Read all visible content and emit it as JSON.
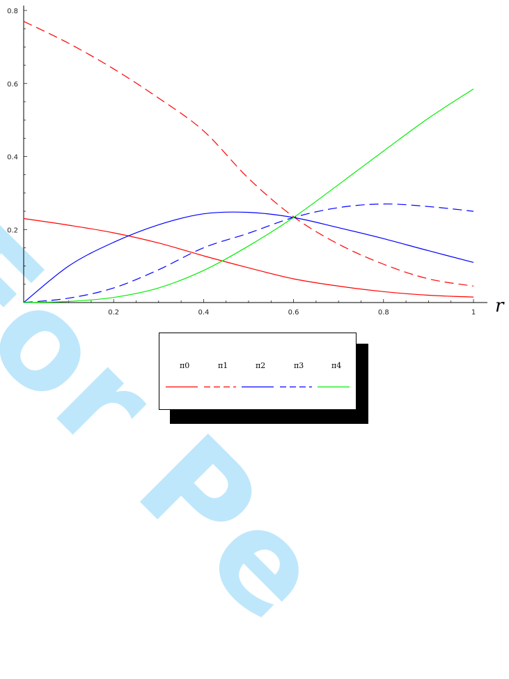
{
  "watermark": "For Pe",
  "chart_data": {
    "type": "line",
    "title": "",
    "xlabel": "r",
    "ylabel": "",
    "xlim": [
      0,
      1
    ],
    "ylim": [
      0,
      0.8
    ],
    "x_ticks": [
      0.2,
      0.4,
      0.6,
      0.8,
      1
    ],
    "x_tick_labels": [
      "0.2",
      "0.4",
      "0.6",
      "0.8",
      "1"
    ],
    "y_ticks": [
      0.2,
      0.4,
      0.6,
      0.8
    ],
    "y_tick_labels": [
      "0.2",
      "0.4",
      "0.6",
      "0.8"
    ],
    "grid": false,
    "legend_position": "bottom-center",
    "x": [
      0,
      0.1,
      0.2,
      0.3,
      0.4,
      0.5,
      0.6,
      0.7,
      0.8,
      0.9,
      1.0
    ],
    "series": [
      {
        "name": "π0",
        "color": "#ff0000",
        "dash": "solid",
        "values": [
          0.23,
          0.212,
          0.191,
          0.163,
          0.128,
          0.095,
          0.065,
          0.045,
          0.03,
          0.02,
          0.015
        ]
      },
      {
        "name": "π1",
        "color": "#ff0000",
        "dash": "dashed",
        "values": [
          0.77,
          0.71,
          0.64,
          0.56,
          0.47,
          0.34,
          0.235,
          0.16,
          0.105,
          0.065,
          0.045
        ]
      },
      {
        "name": "π2",
        "color": "#0000ff",
        "dash": "solid",
        "values": [
          0.0,
          0.1,
          0.165,
          0.213,
          0.243,
          0.247,
          0.233,
          0.205,
          0.175,
          0.142,
          0.11
        ]
      },
      {
        "name": "π3",
        "color": "#0000ff",
        "dash": "dashed",
        "values": [
          0.0,
          0.012,
          0.04,
          0.09,
          0.15,
          0.19,
          0.233,
          0.26,
          0.27,
          0.263,
          0.25
        ]
      },
      {
        "name": "π4",
        "color": "#00ee00",
        "dash": "solid",
        "values": [
          0.0,
          0.003,
          0.014,
          0.04,
          0.088,
          0.155,
          0.233,
          0.323,
          0.415,
          0.505,
          0.585
        ]
      }
    ]
  }
}
